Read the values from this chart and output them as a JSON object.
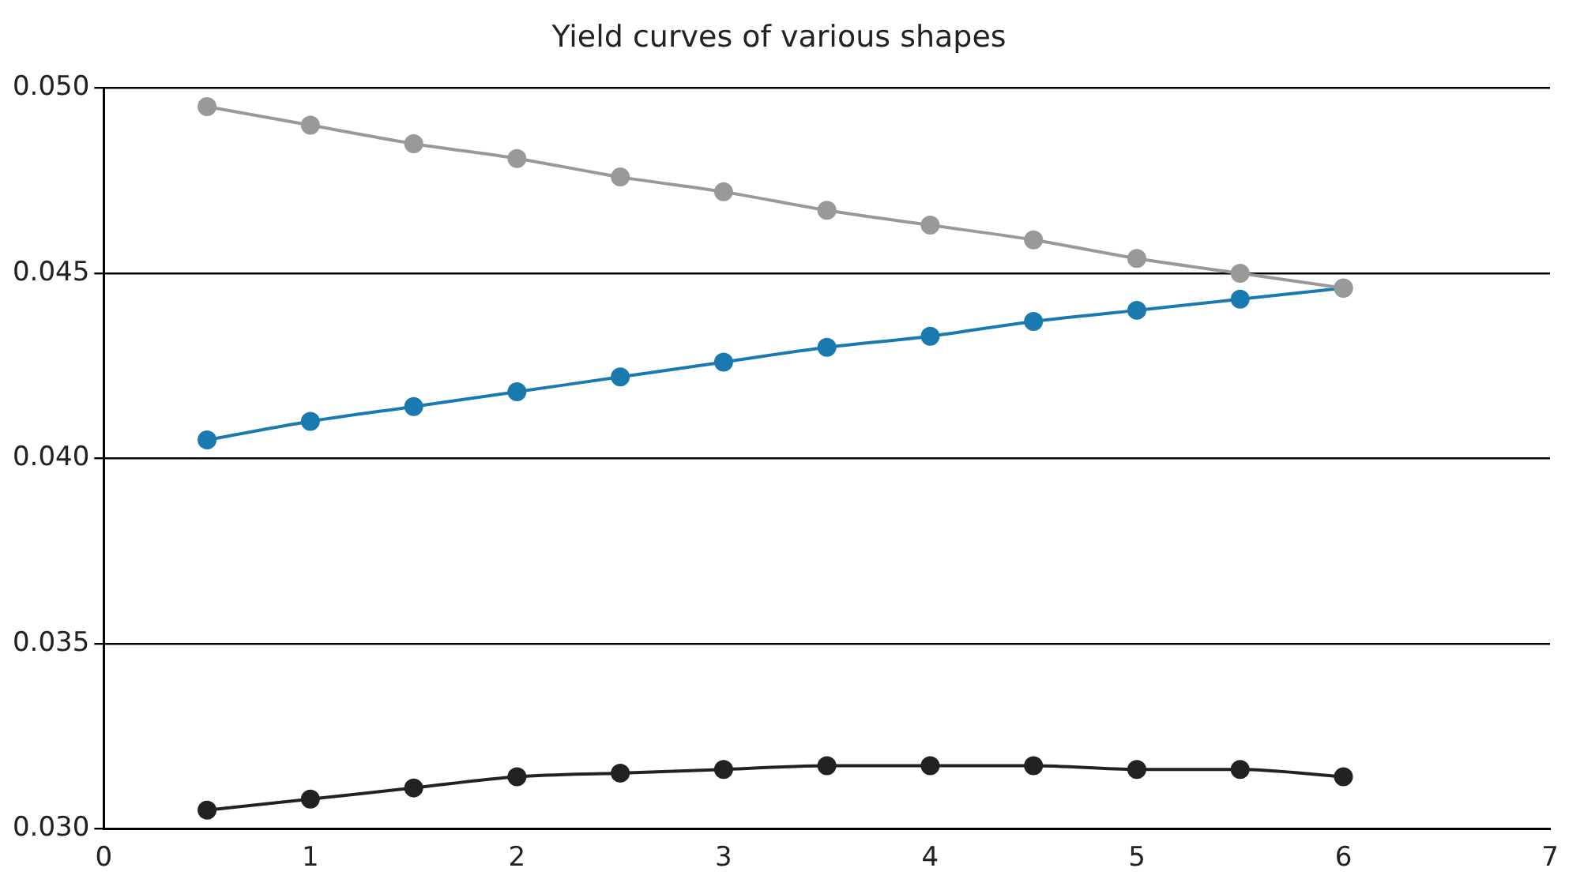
{
  "chart_data": {
    "type": "line",
    "title": "Yield curves of various shapes",
    "x": [
      0.5,
      1,
      1.5,
      2,
      2.5,
      3,
      3.5,
      4,
      4.5,
      5,
      5.5,
      6
    ],
    "series": [
      {
        "color": "#999999",
        "values": [
          0.0495,
          0.049,
          0.0485,
          0.0481,
          0.0476,
          0.0472,
          0.0467,
          0.0463,
          0.0459,
          0.0454,
          0.045,
          0.0446
        ]
      },
      {
        "color": "#1a7ab0",
        "values": [
          0.0405,
          0.041,
          0.0414,
          0.0418,
          0.0422,
          0.0426,
          0.043,
          0.0433,
          0.0437,
          0.044,
          0.0443,
          0.0446
        ]
      },
      {
        "color": "#222222",
        "values": [
          0.0305,
          0.0308,
          0.0311,
          0.0314,
          0.0315,
          0.0316,
          0.0317,
          0.0317,
          0.0317,
          0.0316,
          0.0316,
          0.0314
        ]
      }
    ],
    "xlim": [
      0,
      7
    ],
    "xticks": [
      0,
      1,
      2,
      3,
      4,
      5,
      6,
      7
    ],
    "ylim": [
      0.03,
      0.05
    ],
    "yticks": [
      {
        "value": 0.03,
        "label": "0.030"
      },
      {
        "value": 0.035,
        "label": "0.035"
      },
      {
        "value": 0.04,
        "label": "0.040"
      },
      {
        "value": 0.045,
        "label": "0.045"
      },
      {
        "value": 0.05,
        "label": "0.050"
      }
    ],
    "grid": "y",
    "legend": false,
    "marker": "circle",
    "line_style": "solid"
  }
}
